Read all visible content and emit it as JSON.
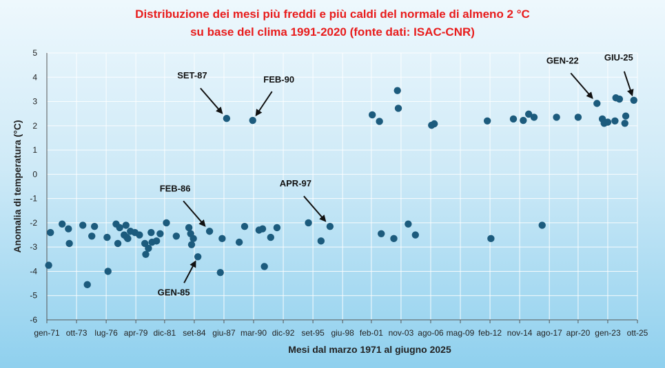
{
  "title_line1": "Distribuzione dei mesi più freddi e più caldi del normale di almeno 2 °C",
  "title_line2": "su base del clima 1991-2020 (fonte dati: ISAC-CNR)",
  "colors": {
    "title": "#e81c1c",
    "points": "#1c5b7d",
    "grid": "#ffffff",
    "text": "#222222"
  },
  "chart_data": {
    "type": "scatter",
    "xlabel": "Mesi dal marzo 1971 al giugno 2025",
    "ylabel": "Anomalia di temperatura (°C)",
    "ylim": [
      -6,
      5
    ],
    "xlim": [
      "1971-01",
      "2025-10"
    ],
    "yticks": [
      5,
      4,
      3,
      2,
      1,
      0,
      -1,
      -2,
      -3,
      -4,
      -5,
      -6
    ],
    "xtick_labels": [
      {
        "label": "gen-71",
        "date": "1971-01"
      },
      {
        "label": "ott-73",
        "date": "1973-10"
      },
      {
        "label": "lug-76",
        "date": "1976-07"
      },
      {
        "label": "apr-79",
        "date": "1979-04"
      },
      {
        "label": "dic-81",
        "date": "1981-12"
      },
      {
        "label": "set-84",
        "date": "1984-09"
      },
      {
        "label": "giu-87",
        "date": "1987-06"
      },
      {
        "label": "mar-90",
        "date": "1990-03"
      },
      {
        "label": "dic-92",
        "date": "1992-12"
      },
      {
        "label": "set-95",
        "date": "1995-09"
      },
      {
        "label": "giu-98",
        "date": "1998-06"
      },
      {
        "label": "feb-01",
        "date": "2001-02"
      },
      {
        "label": "nov-03",
        "date": "2003-11"
      },
      {
        "label": "ago-06",
        "date": "2006-08"
      },
      {
        "label": "mag-09",
        "date": "2009-05"
      },
      {
        "label": "feb-12",
        "date": "2012-02"
      },
      {
        "label": "nov-14",
        "date": "2014-11"
      },
      {
        "label": "ago-17",
        "date": "2017-08"
      },
      {
        "label": "apr-20",
        "date": "2020-04"
      },
      {
        "label": "gen-23",
        "date": "2023-01"
      },
      {
        "label": "ott-25",
        "date": "2025-10"
      }
    ],
    "grid": true,
    "legend": "none",
    "points": [
      {
        "x": "1971-03",
        "y": -3.75
      },
      {
        "x": "1971-05",
        "y": -2.4
      },
      {
        "x": "1972-06",
        "y": -2.05
      },
      {
        "x": "1973-01",
        "y": -2.25
      },
      {
        "x": "1973-02",
        "y": -2.85
      },
      {
        "x": "1974-05",
        "y": -2.1
      },
      {
        "x": "1974-10",
        "y": -4.55
      },
      {
        "x": "1975-03",
        "y": -2.55
      },
      {
        "x": "1975-06",
        "y": -2.15
      },
      {
        "x": "1976-08",
        "y": -2.6
      },
      {
        "x": "1976-09",
        "y": -4.0
      },
      {
        "x": "1977-06",
        "y": -2.05
      },
      {
        "x": "1977-08",
        "y": -2.85
      },
      {
        "x": "1977-10",
        "y": -2.2
      },
      {
        "x": "1978-03",
        "y": -2.5
      },
      {
        "x": "1978-05",
        "y": -2.1
      },
      {
        "x": "1978-06",
        "y": -2.6
      },
      {
        "x": "1978-07",
        "y": -2.65
      },
      {
        "x": "1978-10",
        "y": -2.35
      },
      {
        "x": "1979-03",
        "y": -2.4
      },
      {
        "x": "1979-08",
        "y": -2.5
      },
      {
        "x": "1980-02",
        "y": -2.85
      },
      {
        "x": "1980-03",
        "y": -3.3
      },
      {
        "x": "1980-06",
        "y": -3.05
      },
      {
        "x": "1980-09",
        "y": -2.4
      },
      {
        "x": "1980-10",
        "y": -2.8
      },
      {
        "x": "1981-03",
        "y": -2.75
      },
      {
        "x": "1981-07",
        "y": -2.45
      },
      {
        "x": "1982-02",
        "y": -2.0
      },
      {
        "x": "1983-01",
        "y": -2.55
      },
      {
        "x": "1984-03",
        "y": -2.2
      },
      {
        "x": "1984-05",
        "y": -2.45
      },
      {
        "x": "1984-06",
        "y": -2.9
      },
      {
        "x": "1984-08",
        "y": -2.65
      },
      {
        "x": "1985-01",
        "y": -3.4
      },
      {
        "x": "1986-02",
        "y": -2.35
      },
      {
        "x": "1987-02",
        "y": -4.05
      },
      {
        "x": "1987-04",
        "y": -2.65
      },
      {
        "x": "1987-09",
        "y": 2.3
      },
      {
        "x": "1988-11",
        "y": -2.8
      },
      {
        "x": "1989-05",
        "y": -2.15
      },
      {
        "x": "1990-02",
        "y": 2.22
      },
      {
        "x": "1990-09",
        "y": -2.3
      },
      {
        "x": "1991-01",
        "y": -2.25
      },
      {
        "x": "1991-03",
        "y": -3.8
      },
      {
        "x": "1991-10",
        "y": -2.6
      },
      {
        "x": "1992-05",
        "y": -2.2
      },
      {
        "x": "1995-04",
        "y": -2.0
      },
      {
        "x": "1996-06",
        "y": -2.75
      },
      {
        "x": "1997-04",
        "y": -2.15
      },
      {
        "x": "2001-03",
        "y": 2.45
      },
      {
        "x": "2001-11",
        "y": 2.18
      },
      {
        "x": "2002-01",
        "y": -2.45
      },
      {
        "x": "2003-03",
        "y": -2.65
      },
      {
        "x": "2003-07",
        "y": 3.45
      },
      {
        "x": "2003-08",
        "y": 2.72
      },
      {
        "x": "2004-07",
        "y": -2.05
      },
      {
        "x": "2005-03",
        "y": -2.5
      },
      {
        "x": "2006-09",
        "y": 2.02
      },
      {
        "x": "2006-12",
        "y": 2.08
      },
      {
        "x": "2011-11",
        "y": 2.2
      },
      {
        "x": "2012-03",
        "y": -2.65
      },
      {
        "x": "2014-04",
        "y": 2.28
      },
      {
        "x": "2015-03",
        "y": 2.22
      },
      {
        "x": "2015-09",
        "y": 2.48
      },
      {
        "x": "2016-03",
        "y": 2.35
      },
      {
        "x": "2016-12",
        "y": -2.1
      },
      {
        "x": "2018-04",
        "y": 2.35
      },
      {
        "x": "2020-04",
        "y": 2.35
      },
      {
        "x": "2022-01",
        "y": 2.92
      },
      {
        "x": "2022-07",
        "y": 2.28
      },
      {
        "x": "2022-09",
        "y": 2.1
      },
      {
        "x": "2023-01",
        "y": 2.15
      },
      {
        "x": "2023-09",
        "y": 2.2
      },
      {
        "x": "2023-10",
        "y": 3.15
      },
      {
        "x": "2024-02",
        "y": 3.1
      },
      {
        "x": "2024-08",
        "y": 2.1
      },
      {
        "x": "2024-09",
        "y": 2.4
      },
      {
        "x": "2025-06",
        "y": 3.05
      }
    ],
    "annotations": [
      {
        "label": "SET-87",
        "target": {
          "x": "1987-09",
          "y": 2.3
        },
        "pos": "above-left"
      },
      {
        "label": "FEB-90",
        "target": {
          "x": "1990-02",
          "y": 2.22
        },
        "pos": "above-right"
      },
      {
        "label": "FEB-86",
        "target": {
          "x": "1986-02",
          "y": -2.35
        },
        "pos": "above-left"
      },
      {
        "label": "APR-97",
        "target": {
          "x": "1997-04",
          "y": -2.15
        },
        "pos": "above-left"
      },
      {
        "label": "GEN-85",
        "target": {
          "x": "1985-01",
          "y": -3.4
        },
        "pos": "below-left"
      },
      {
        "label": "GEN-22",
        "target": {
          "x": "2022-01",
          "y": 2.92
        },
        "pos": "above-left"
      },
      {
        "label": "GIU-25",
        "target": {
          "x": "2025-06",
          "y": 3.05
        },
        "pos": "above"
      }
    ]
  }
}
